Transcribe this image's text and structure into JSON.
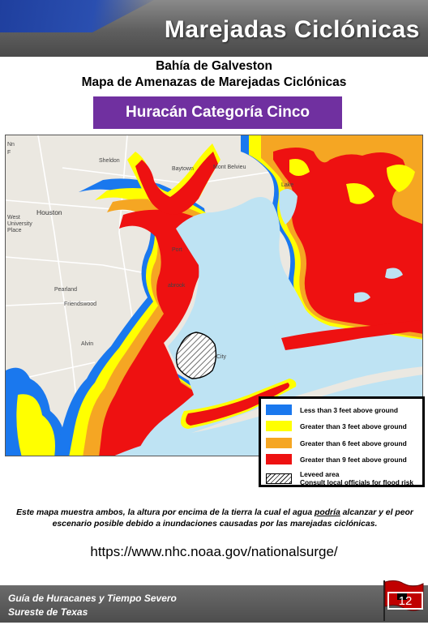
{
  "header": {
    "title": "Marejadas Ciclónicas"
  },
  "subtitle": {
    "line1": "Bahía de Galveston",
    "line2": "Mapa de Amenazas de Marejadas Ciclónicas"
  },
  "banner": {
    "label": "Huracán Categoría Cinco",
    "color": "#7030a0"
  },
  "map": {
    "place_labels": {
      "houston": "Houston",
      "west": "West",
      "university": "University",
      "place": "Place",
      "pearland": "Pearland",
      "friendswood": "Friendswood",
      "alvin": "Alvin",
      "sheldon": "Sheldon",
      "baytown": "Baytown",
      "mont_belvieu": "Mont Belvieu",
      "lake": "Lake",
      "port": "Port",
      "seabrook": "abrook",
      "city": "City",
      "nn": "Nn",
      "f": "F"
    },
    "colors": {
      "water": "#bee3f3",
      "land": "#ebe8e1",
      "blue": "#1a78ee",
      "yellow": "#ffff00",
      "orange": "#f5a623",
      "red": "#ee1111"
    }
  },
  "legend": {
    "items": [
      {
        "label": "Less than 3 feet above ground",
        "color": "#1a78ee"
      },
      {
        "label": "Greater than 3 feet above ground",
        "color": "#ffff00"
      },
      {
        "label": "Greater than 6 feet above ground",
        "color": "#f5a623"
      },
      {
        "label": "Greater than 9 feet above ground",
        "color": "#ee1111"
      }
    ],
    "levee": {
      "line1": "Leveed area",
      "line2": "Consult local officials for flood risk"
    }
  },
  "description": {
    "part1": "Este mapa muestra ambos, la altura por encima de la tierra la cual el agua ",
    "emphasis": "podría",
    "part2": " alcanzar y el peor escenario posible debido a inundaciones causadas por las marejadas ciclónicas."
  },
  "url": "https://www.nhc.noaa.gov/nationalsurge/",
  "footer": {
    "line1": "Guía de Huracanes y Tiempo Severo",
    "line2": "Sureste de Texas",
    "page_number": "12"
  }
}
